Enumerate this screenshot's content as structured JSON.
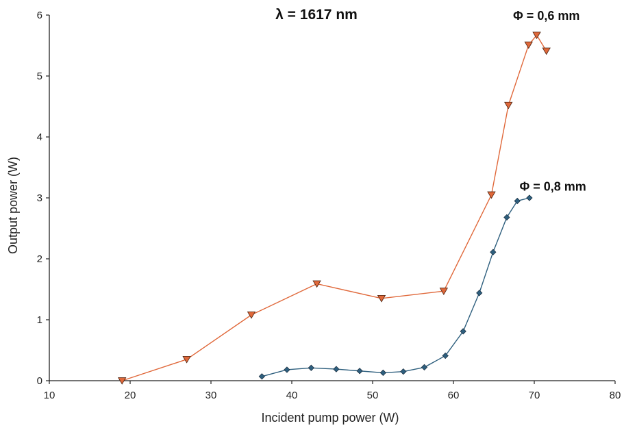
{
  "chart_data": {
    "type": "line",
    "title": "λ = 1617 nm",
    "xlabel": "Incident pump power (W)",
    "ylabel": "Output power (W)",
    "xlim": [
      10,
      80
    ],
    "ylim": [
      0,
      6
    ],
    "xticks": [
      10,
      20,
      30,
      40,
      50,
      60,
      70,
      80
    ],
    "yticks": [
      0,
      1,
      2,
      3,
      4,
      5,
      6
    ],
    "grid": false,
    "legend": "none",
    "series": [
      {
        "name": "Φ = 0,6 mm",
        "color": "#e0683a",
        "marker": "triangle-down",
        "x": [
          19.0,
          27.0,
          35.0,
          43.1,
          51.1,
          58.8,
          64.7,
          66.8,
          69.3,
          70.3,
          71.5
        ],
        "y": [
          0.0,
          0.35,
          1.08,
          1.59,
          1.35,
          1.47,
          3.05,
          4.52,
          5.51,
          5.67,
          5.41
        ]
      },
      {
        "name": "Φ = 0,8 mm",
        "color": "#2e5f7e",
        "marker": "diamond",
        "x": [
          36.3,
          39.4,
          42.4,
          45.5,
          48.4,
          51.3,
          53.8,
          56.4,
          59.0,
          61.2,
          63.2,
          64.9,
          66.6,
          67.9,
          69.4
        ],
        "y": [
          0.07,
          0.18,
          0.21,
          0.19,
          0.16,
          0.13,
          0.15,
          0.22,
          0.41,
          0.81,
          1.44,
          2.11,
          2.68,
          2.95,
          3.0
        ]
      }
    ],
    "annotations": [
      {
        "text": "Φ = 0,6 mm",
        "x": 71.5,
        "y": 5.92,
        "series": 0
      },
      {
        "text": "Φ = 0,8 mm",
        "x": 72.3,
        "y": 3.12,
        "series": 1
      }
    ]
  }
}
